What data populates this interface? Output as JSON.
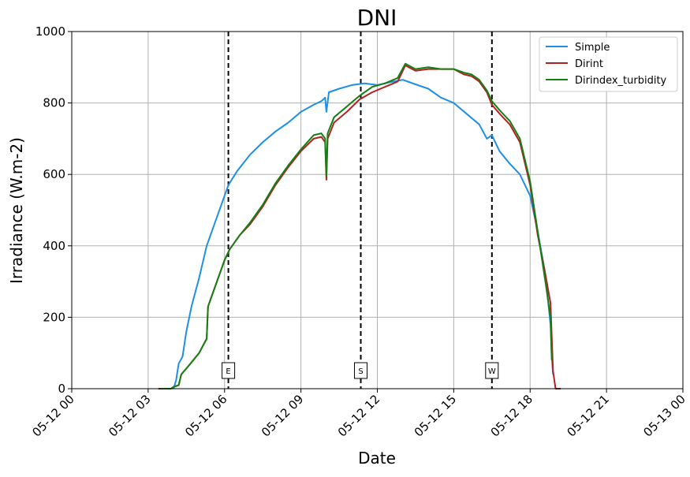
{
  "chart_data": {
    "type": "line",
    "title": "DNI",
    "xlabel": "Date",
    "ylabel": "Irradiance (W.m-2)",
    "xlim_hours": [
      0,
      24
    ],
    "ylim": [
      0,
      1000
    ],
    "grid": true,
    "legend_position": "top-right",
    "x_ticks": [
      {
        "hour": 0,
        "label": "05-12 00"
      },
      {
        "hour": 3,
        "label": "05-12 03"
      },
      {
        "hour": 6,
        "label": "05-12 06"
      },
      {
        "hour": 9,
        "label": "05-12 09"
      },
      {
        "hour": 12,
        "label": "05-12 12"
      },
      {
        "hour": 15,
        "label": "05-12 15"
      },
      {
        "hour": 18,
        "label": "05-12 18"
      },
      {
        "hour": 21,
        "label": "05-12 21"
      },
      {
        "hour": 24,
        "label": "05-13 00"
      }
    ],
    "y_ticks": [
      0,
      200,
      400,
      600,
      800,
      1000
    ],
    "vlines": [
      {
        "hour": 6.15,
        "label": "E"
      },
      {
        "hour": 11.35,
        "label": "S"
      },
      {
        "hour": 16.5,
        "label": "W"
      }
    ],
    "series": [
      {
        "name": "Simple",
        "color": "#1e8fe6",
        "points": [
          [
            4.0,
            0
          ],
          [
            4.1,
            25
          ],
          [
            4.2,
            70
          ],
          [
            4.35,
            90
          ],
          [
            4.5,
            160
          ],
          [
            4.7,
            230
          ],
          [
            5.0,
            310
          ],
          [
            5.3,
            400
          ],
          [
            5.6,
            460
          ],
          [
            5.9,
            520
          ],
          [
            6.15,
            570
          ],
          [
            6.5,
            610
          ],
          [
            7.0,
            655
          ],
          [
            7.5,
            690
          ],
          [
            8.0,
            720
          ],
          [
            8.5,
            745
          ],
          [
            9.0,
            775
          ],
          [
            9.5,
            795
          ],
          [
            9.8,
            805
          ],
          [
            9.95,
            815
          ],
          [
            10.0,
            775
          ],
          [
            10.1,
            830
          ],
          [
            10.5,
            840
          ],
          [
            11.0,
            850
          ],
          [
            11.5,
            855
          ],
          [
            12.0,
            850
          ],
          [
            12.5,
            858
          ],
          [
            13.0,
            865
          ],
          [
            13.5,
            852
          ],
          [
            14.0,
            840
          ],
          [
            14.5,
            815
          ],
          [
            15.0,
            800
          ],
          [
            15.5,
            770
          ],
          [
            16.0,
            740
          ],
          [
            16.3,
            700
          ],
          [
            16.5,
            710
          ],
          [
            16.8,
            665
          ],
          [
            17.2,
            630
          ],
          [
            17.6,
            600
          ],
          [
            18.0,
            540
          ],
          [
            18.3,
            440
          ],
          [
            18.6,
            320
          ],
          [
            18.8,
            180
          ],
          [
            18.85,
            90
          ],
          [
            18.9,
            40
          ]
        ]
      },
      {
        "name": "Dirint",
        "color": "#b22222",
        "points": [
          [
            3.4,
            0
          ],
          [
            3.9,
            0
          ],
          [
            4.0,
            5
          ],
          [
            4.2,
            10
          ],
          [
            4.3,
            40
          ],
          [
            4.6,
            65
          ],
          [
            5.0,
            100
          ],
          [
            5.3,
            140
          ],
          [
            5.35,
            230
          ],
          [
            5.7,
            300
          ],
          [
            6.0,
            360
          ],
          [
            6.2,
            390
          ],
          [
            6.6,
            430
          ],
          [
            7.0,
            460
          ],
          [
            7.5,
            510
          ],
          [
            8.0,
            570
          ],
          [
            8.5,
            620
          ],
          [
            9.0,
            665
          ],
          [
            9.5,
            700
          ],
          [
            9.8,
            705
          ],
          [
            9.95,
            690
          ],
          [
            10.0,
            585
          ],
          [
            10.05,
            700
          ],
          [
            10.3,
            745
          ],
          [
            10.8,
            775
          ],
          [
            11.3,
            810
          ],
          [
            11.8,
            830
          ],
          [
            12.3,
            845
          ],
          [
            12.8,
            860
          ],
          [
            13.1,
            905
          ],
          [
            13.5,
            890
          ],
          [
            14.0,
            895
          ],
          [
            14.5,
            895
          ],
          [
            15.0,
            895
          ],
          [
            15.4,
            880
          ],
          [
            15.7,
            875
          ],
          [
            16.0,
            860
          ],
          [
            16.3,
            830
          ],
          [
            16.5,
            795
          ],
          [
            16.8,
            770
          ],
          [
            17.2,
            740
          ],
          [
            17.6,
            690
          ],
          [
            18.0,
            570
          ],
          [
            18.3,
            430
          ],
          [
            18.6,
            320
          ],
          [
            18.8,
            240
          ],
          [
            18.9,
            50
          ],
          [
            19.0,
            0
          ],
          [
            19.2,
            0
          ]
        ]
      },
      {
        "name": "Dirindex_turbidity",
        "color": "#138013",
        "points": [
          [
            3.5,
            0
          ],
          [
            3.9,
            0
          ],
          [
            4.0,
            5
          ],
          [
            4.2,
            10
          ],
          [
            4.3,
            40
          ],
          [
            4.6,
            65
          ],
          [
            5.0,
            100
          ],
          [
            5.3,
            140
          ],
          [
            5.35,
            230
          ],
          [
            5.7,
            300
          ],
          [
            6.0,
            360
          ],
          [
            6.2,
            390
          ],
          [
            6.6,
            430
          ],
          [
            7.0,
            465
          ],
          [
            7.5,
            515
          ],
          [
            8.0,
            575
          ],
          [
            8.5,
            625
          ],
          [
            9.0,
            670
          ],
          [
            9.5,
            710
          ],
          [
            9.8,
            715
          ],
          [
            9.95,
            700
          ],
          [
            10.0,
            595
          ],
          [
            10.05,
            715
          ],
          [
            10.3,
            760
          ],
          [
            10.8,
            790
          ],
          [
            11.3,
            820
          ],
          [
            11.8,
            845
          ],
          [
            12.3,
            855
          ],
          [
            12.8,
            870
          ],
          [
            13.1,
            910
          ],
          [
            13.5,
            895
          ],
          [
            14.0,
            900
          ],
          [
            14.5,
            895
          ],
          [
            15.0,
            895
          ],
          [
            15.4,
            885
          ],
          [
            15.7,
            880
          ],
          [
            16.0,
            865
          ],
          [
            16.3,
            835
          ],
          [
            16.5,
            805
          ],
          [
            16.8,
            780
          ],
          [
            17.2,
            750
          ],
          [
            17.6,
            700
          ],
          [
            18.0,
            580
          ],
          [
            18.3,
            440
          ],
          [
            18.6,
            300
          ],
          [
            18.8,
            200
          ],
          [
            18.85,
            80
          ]
        ]
      }
    ]
  }
}
